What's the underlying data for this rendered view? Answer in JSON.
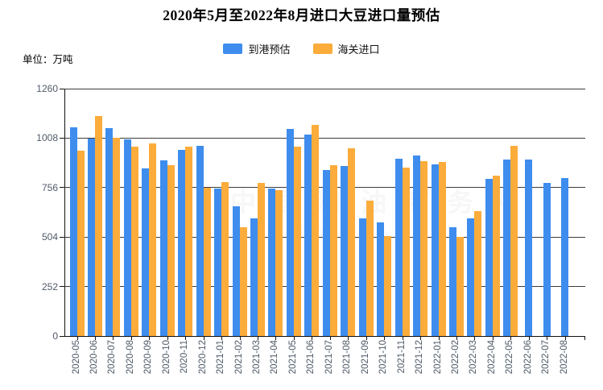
{
  "page": {
    "title": "2020年5月至2022年8月进口大豆进口量预估",
    "unit_label": "单位：万吨"
  },
  "watermark": {
    "text": "中国粮油商务网",
    "sub": "www"
  },
  "chart_data": {
    "type": "bar",
    "title": "2020年5月至2022年8月进口大豆进口量预估",
    "ylabel": "单位：万吨",
    "xlabel": "",
    "ylim": [
      0,
      1260
    ],
    "y_ticks": [
      0,
      252,
      504,
      756,
      1008,
      1260
    ],
    "grid": true,
    "legend_position": "top",
    "x_label_rotation": 90,
    "categories": [
      "2020-05",
      "2020-06",
      "2020-07",
      "2020-08",
      "2020-09",
      "2020-10",
      "2020-11",
      "2020-12",
      "2021-01",
      "2021-02",
      "2021-03",
      "2021-04",
      "2021-05",
      "2021-06",
      "2021-07",
      "2021-08",
      "2021-09",
      "2021-10",
      "2021-11",
      "2021-12",
      "2022-01",
      "2022-02",
      "2022-03",
      "2022-04",
      "2022-05",
      "2022-06",
      "2022-07",
      "2022-08"
    ],
    "series": [
      {
        "name": "到港预估",
        "color": "#3E8DEE",
        "values": [
          1065,
          1005,
          1060,
          1000,
          855,
          895,
          950,
          970,
          750,
          660,
          600,
          750,
          1055,
          1025,
          845,
          865,
          600,
          580,
          905,
          920,
          875,
          555,
          600,
          800,
          900,
          900,
          780,
          805
        ]
      },
      {
        "name": "海关进口",
        "color": "#FBAC3B",
        "values": [
          945,
          1120,
          1010,
          965,
          980,
          870,
          965,
          755,
          785,
          555,
          780,
          745,
          965,
          1075,
          870,
          955,
          690,
          510,
          860,
          890,
          885,
          505,
          635,
          815,
          970,
          null,
          null,
          null
        ]
      }
    ]
  },
  "colors": {
    "axis_line": "#111111",
    "grid_line": "#3c3c3c",
    "axis_label": "#4f5a68"
  }
}
